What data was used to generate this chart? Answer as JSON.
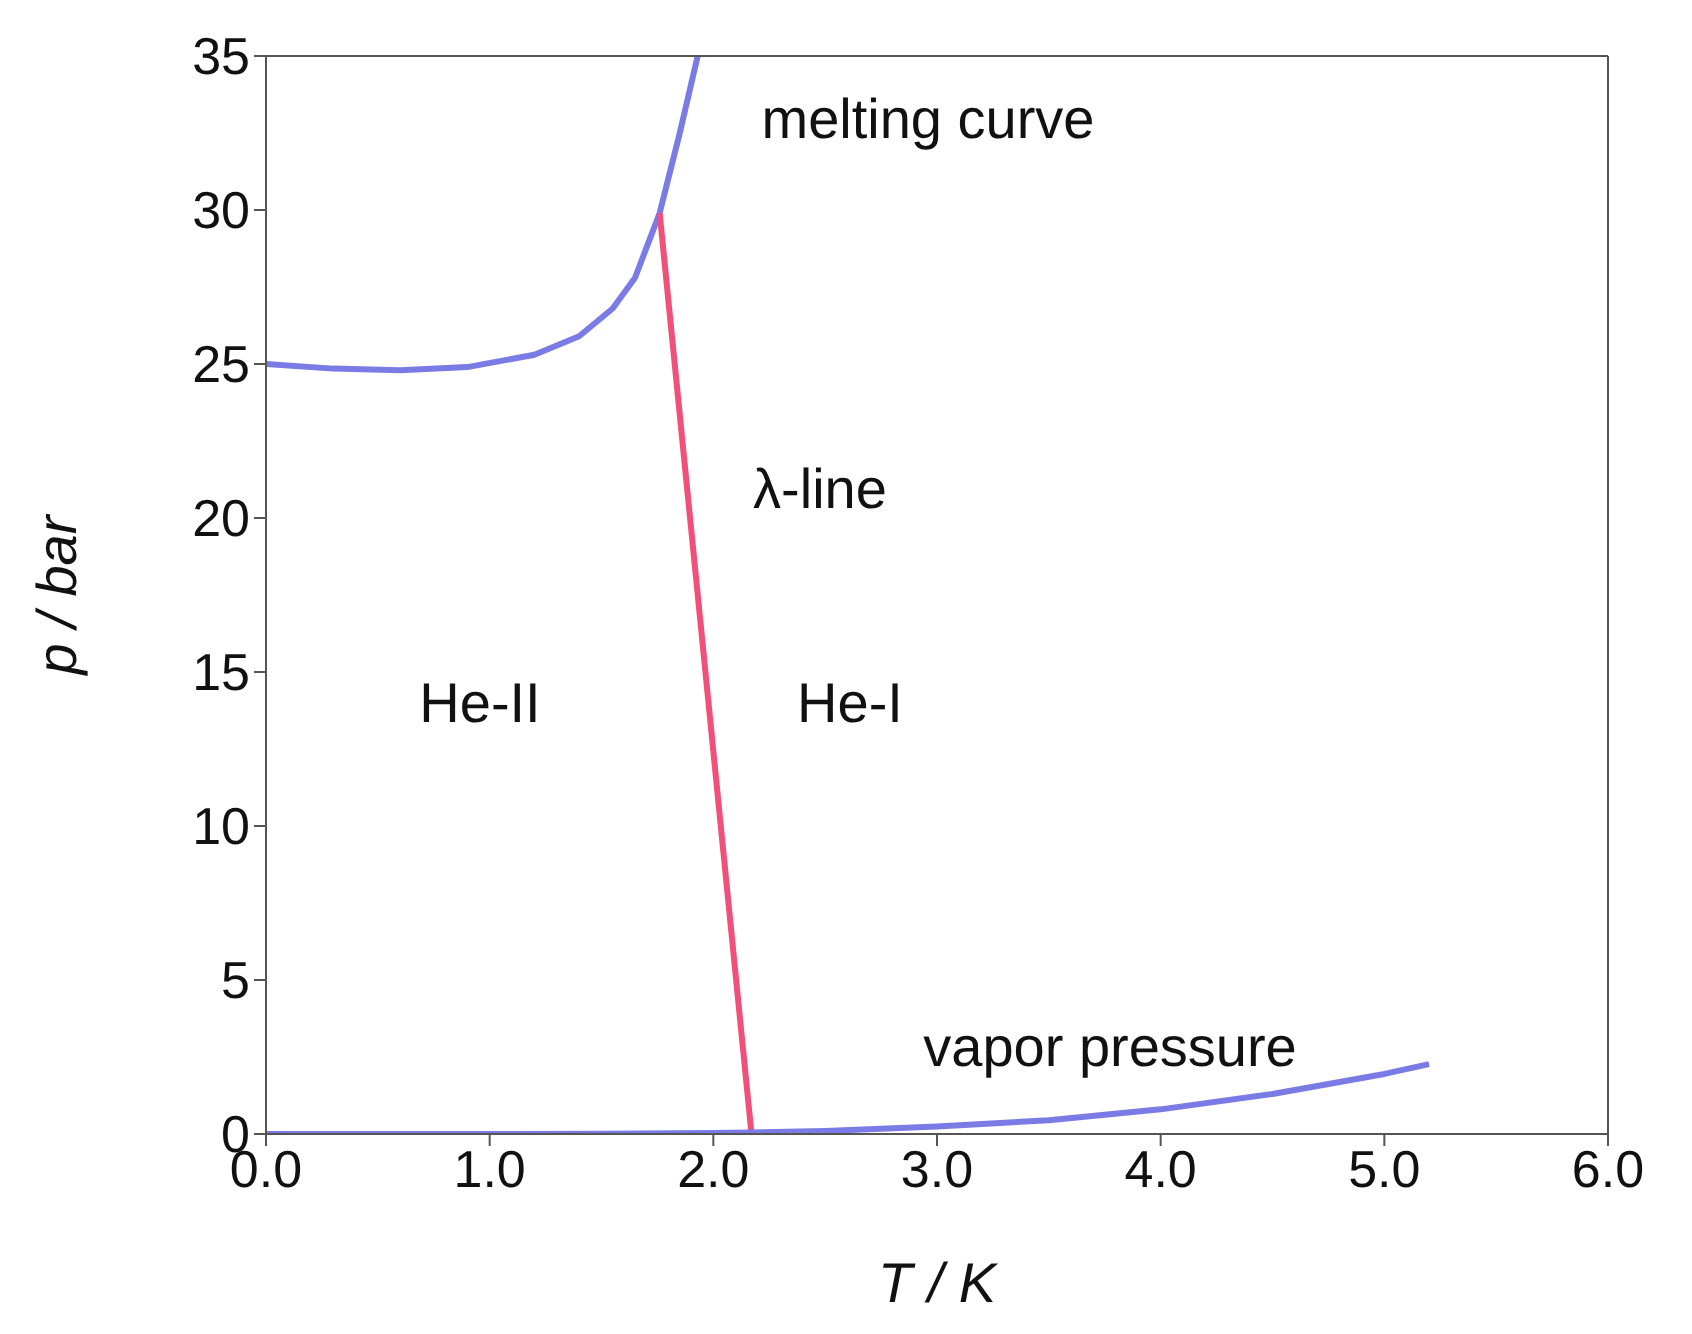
{
  "chart_data": {
    "type": "line",
    "xlabel": "T / K",
    "ylabel": "p / bar",
    "xlim": [
      0,
      6
    ],
    "xticks": [
      {
        "value": 0,
        "label": "0.0"
      },
      {
        "value": 1,
        "label": "1.0"
      },
      {
        "value": 2,
        "label": "2.0"
      },
      {
        "value": 3,
        "label": "3.0"
      },
      {
        "value": 4,
        "label": "4.0"
      },
      {
        "value": 5,
        "label": "5.0"
      },
      {
        "value": 6,
        "label": "6.0"
      }
    ],
    "ylim": [
      0,
      35
    ],
    "yticks": [
      0,
      5,
      10,
      15,
      20,
      25,
      30,
      35
    ],
    "grid": false,
    "marker": "none",
    "line_style": "solid",
    "series": [
      {
        "color": "#7b7be6",
        "x": [
          0,
          0.3,
          0.6,
          0.9,
          1.2,
          1.4,
          1.55,
          1.65,
          1.76,
          1.85,
          1.93
        ],
        "values": [
          25,
          24.85,
          24.8,
          24.9,
          25.3,
          25.9,
          26.8,
          27.8,
          29.9,
          32.5,
          35
        ]
      },
      {
        "color": "#f0507a",
        "x": [
          1.76,
          2.17
        ],
        "values": [
          29.9,
          0.05
        ]
      },
      {
        "color": "#7b7be6",
        "x": [
          0,
          1,
          1.5,
          2,
          2.17,
          2.5,
          3,
          3.5,
          4,
          4.5,
          5,
          5.2
        ],
        "values": [
          0,
          0,
          0.01,
          0.03,
          0.05,
          0.1,
          0.24,
          0.45,
          0.8,
          1.3,
          1.95,
          2.27
        ]
      }
    ],
    "annotations": [
      "melting curve",
      "λ-line",
      "He-II",
      "He-I",
      "vapor pressure"
    ]
  }
}
